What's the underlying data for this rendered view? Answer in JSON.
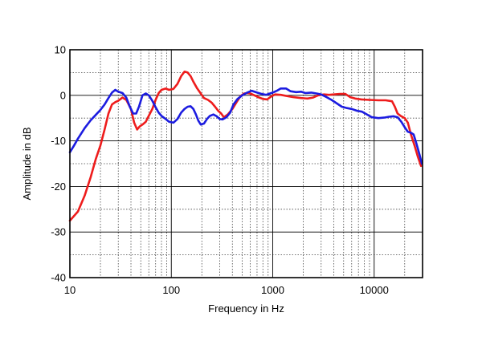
{
  "chart_data": {
    "type": "line",
    "xscale": "log",
    "xlim": [
      10,
      30000
    ],
    "ylim": [
      -40,
      10
    ],
    "xlabel": "Frequency in Hz",
    "ylabel": "Amplitude in dB",
    "x_ticks": [
      {
        "value": 10,
        "label": "10"
      },
      {
        "value": 100,
        "label": "100"
      },
      {
        "value": 1000,
        "label": "1000"
      },
      {
        "value": 10000,
        "label": "10000"
      }
    ],
    "y_ticks": [
      {
        "value": 10,
        "label": "10"
      },
      {
        "value": 0,
        "label": "0"
      },
      {
        "value": -10,
        "label": "-10"
      },
      {
        "value": -20,
        "label": "-20"
      },
      {
        "value": -30,
        "label": "-30"
      },
      {
        "value": -40,
        "label": "-40"
      }
    ],
    "y_minor_step": 5,
    "grid": true,
    "series": [
      {
        "color": "#ee1c1c",
        "points": [
          [
            10,
            -27.5
          ],
          [
            12,
            -25.5
          ],
          [
            14,
            -22
          ],
          [
            16,
            -18
          ],
          [
            18,
            -14
          ],
          [
            20,
            -11
          ],
          [
            22,
            -7.5
          ],
          [
            24,
            -4
          ],
          [
            26,
            -2
          ],
          [
            28,
            -1.5
          ],
          [
            30,
            -1.2
          ],
          [
            33,
            -0.5
          ],
          [
            36,
            -1
          ],
          [
            40,
            -3
          ],
          [
            43,
            -6
          ],
          [
            46,
            -7.5
          ],
          [
            49,
            -6.8
          ],
          [
            52,
            -6.4
          ],
          [
            56,
            -5.8
          ],
          [
            60,
            -4.5
          ],
          [
            65,
            -3
          ],
          [
            70,
            -1
          ],
          [
            75,
            0.5
          ],
          [
            80,
            1.2
          ],
          [
            88,
            1.5
          ],
          [
            95,
            1.2
          ],
          [
            105,
            1.4
          ],
          [
            115,
            2.5
          ],
          [
            125,
            4.2
          ],
          [
            135,
            5.2
          ],
          [
            145,
            5
          ],
          [
            155,
            4.2
          ],
          [
            165,
            3
          ],
          [
            180,
            1.5
          ],
          [
            195,
            0.4
          ],
          [
            210,
            -0.6
          ],
          [
            230,
            -1
          ],
          [
            250,
            -1.6
          ],
          [
            270,
            -2.5
          ],
          [
            290,
            -3.4
          ],
          [
            310,
            -4
          ],
          [
            330,
            -4.8
          ],
          [
            360,
            -4.2
          ],
          [
            400,
            -3
          ],
          [
            440,
            -1.5
          ],
          [
            480,
            -0.2
          ],
          [
            520,
            0.4
          ],
          [
            560,
            0.5
          ],
          [
            600,
            0.4
          ],
          [
            660,
            0
          ],
          [
            720,
            -0.4
          ],
          [
            800,
            -0.8
          ],
          [
            880,
            -0.9
          ],
          [
            960,
            -0.3
          ],
          [
            1050,
            0.2
          ],
          [
            1200,
            0.1
          ],
          [
            1400,
            -0.2
          ],
          [
            1600,
            -0.4
          ],
          [
            1900,
            -0.6
          ],
          [
            2200,
            -0.7
          ],
          [
            2500,
            -0.5
          ],
          [
            2800,
            0
          ],
          [
            3200,
            0.2
          ],
          [
            3600,
            0.1
          ],
          [
            4000,
            0.2
          ],
          [
            4600,
            0.3
          ],
          [
            5200,
            0.3
          ],
          [
            5800,
            -0.4
          ],
          [
            6500,
            -0.7
          ],
          [
            7500,
            -0.9
          ],
          [
            9000,
            -1
          ],
          [
            11000,
            -1.1
          ],
          [
            13000,
            -1.1
          ],
          [
            15000,
            -1.3
          ],
          [
            16000,
            -2.5
          ],
          [
            17000,
            -4
          ],
          [
            18500,
            -4.6
          ],
          [
            20000,
            -5
          ],
          [
            21500,
            -6
          ],
          [
            23000,
            -8.5
          ],
          [
            25000,
            -11
          ],
          [
            27000,
            -13.5
          ],
          [
            29000,
            -15.5
          ]
        ]
      },
      {
        "color": "#1c1ce0",
        "points": [
          [
            10,
            -12.5
          ],
          [
            11,
            -11
          ],
          [
            12,
            -9.5
          ],
          [
            13,
            -8.3
          ],
          [
            14,
            -7.2
          ],
          [
            16,
            -5.5
          ],
          [
            18,
            -4.3
          ],
          [
            20,
            -3.2
          ],
          [
            22,
            -2
          ],
          [
            24,
            -0.6
          ],
          [
            26,
            0.6
          ],
          [
            28,
            1.2
          ],
          [
            30,
            0.8
          ],
          [
            33,
            0.5
          ],
          [
            36,
            -0.5
          ],
          [
            39,
            -2.5
          ],
          [
            42,
            -4
          ],
          [
            45,
            -4
          ],
          [
            48,
            -2.5
          ],
          [
            52,
            0
          ],
          [
            56,
            0.4
          ],
          [
            60,
            0
          ],
          [
            65,
            -1.2
          ],
          [
            70,
            -2.6
          ],
          [
            75,
            -3.8
          ],
          [
            80,
            -4.5
          ],
          [
            88,
            -5.2
          ],
          [
            95,
            -5.8
          ],
          [
            105,
            -6
          ],
          [
            115,
            -5.2
          ],
          [
            125,
            -3.8
          ],
          [
            135,
            -3
          ],
          [
            145,
            -2.5
          ],
          [
            155,
            -2.4
          ],
          [
            165,
            -3
          ],
          [
            175,
            -4.2
          ],
          [
            185,
            -5.6
          ],
          [
            195,
            -6.4
          ],
          [
            210,
            -6.2
          ],
          [
            225,
            -5.2
          ],
          [
            240,
            -4.5
          ],
          [
            260,
            -4.2
          ],
          [
            280,
            -4.6
          ],
          [
            300,
            -5.2
          ],
          [
            320,
            -5.3
          ],
          [
            350,
            -4.8
          ],
          [
            380,
            -3.8
          ],
          [
            410,
            -2
          ],
          [
            450,
            -0.8
          ],
          [
            500,
            0
          ],
          [
            560,
            0.6
          ],
          [
            620,
            1
          ],
          [
            700,
            0.6
          ],
          [
            780,
            0.3
          ],
          [
            860,
            0.1
          ],
          [
            940,
            0.4
          ],
          [
            1000,
            0.6
          ],
          [
            1100,
            1
          ],
          [
            1200,
            1.5
          ],
          [
            1350,
            1.5
          ],
          [
            1500,
            0.9
          ],
          [
            1700,
            0.7
          ],
          [
            1900,
            0.8
          ],
          [
            2100,
            0.5
          ],
          [
            2400,
            0.6
          ],
          [
            2700,
            0.4
          ],
          [
            3000,
            0.2
          ],
          [
            3400,
            -0.4
          ],
          [
            3800,
            -1
          ],
          [
            4300,
            -1.8
          ],
          [
            4800,
            -2.5
          ],
          [
            5400,
            -2.8
          ],
          [
            6000,
            -3
          ],
          [
            6800,
            -3.4
          ],
          [
            7600,
            -3.6
          ],
          [
            8500,
            -4.2
          ],
          [
            9500,
            -4.8
          ],
          [
            11000,
            -5
          ],
          [
            12500,
            -4.9
          ],
          [
            14000,
            -4.7
          ],
          [
            15500,
            -4.6
          ],
          [
            17000,
            -4.8
          ],
          [
            18500,
            -5.8
          ],
          [
            20000,
            -7
          ],
          [
            21500,
            -8
          ],
          [
            23000,
            -8.2
          ],
          [
            24500,
            -8.6
          ],
          [
            26000,
            -10.5
          ],
          [
            28000,
            -13
          ],
          [
            29500,
            -15
          ]
        ]
      }
    ]
  }
}
